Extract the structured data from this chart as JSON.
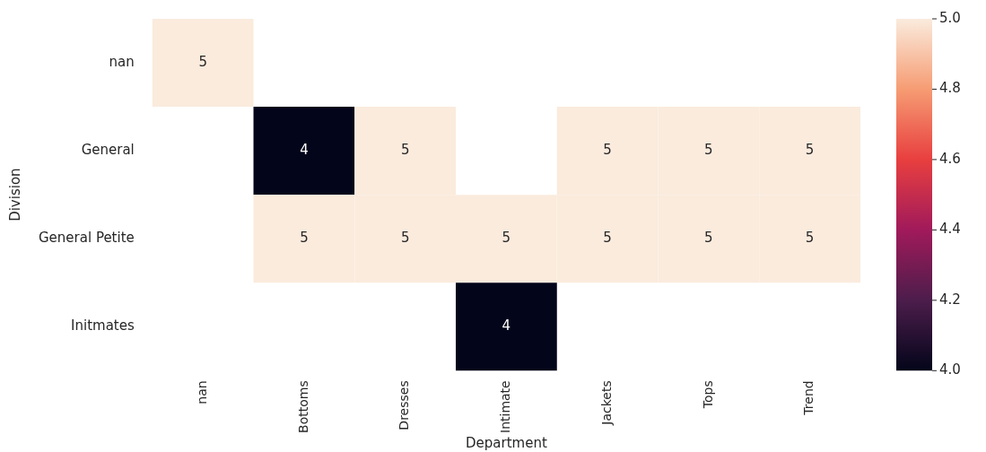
{
  "chart_data": {
    "type": "heatmap",
    "xlabel": "Department",
    "ylabel": "Division",
    "categories": [
      "nan",
      "Bottoms",
      "Dresses",
      "Intimate",
      "Jackets",
      "Tops",
      "Trend"
    ],
    "y_categories": [
      "nan",
      "General",
      "General Petite",
      "Initmates"
    ],
    "cells": [
      [
        5,
        null,
        null,
        null,
        null,
        null,
        null
      ],
      [
        null,
        4,
        5,
        null,
        5,
        5,
        5
      ],
      [
        null,
        5,
        5,
        5,
        5,
        5,
        5
      ],
      [
        null,
        null,
        null,
        4,
        null,
        null,
        null
      ]
    ],
    "data_labels": true,
    "clim": [
      4,
      5
    ],
    "cticks": [
      {
        "value": 4,
        "label": "4.0"
      },
      {
        "value": 4.2,
        "label": "4.2"
      },
      {
        "value": 4.4,
        "label": "4.4"
      },
      {
        "value": 4.6,
        "label": "4.6"
      },
      {
        "value": 4.8,
        "label": "4.8"
      },
      {
        "value": 5,
        "label": "5.0"
      }
    ]
  }
}
